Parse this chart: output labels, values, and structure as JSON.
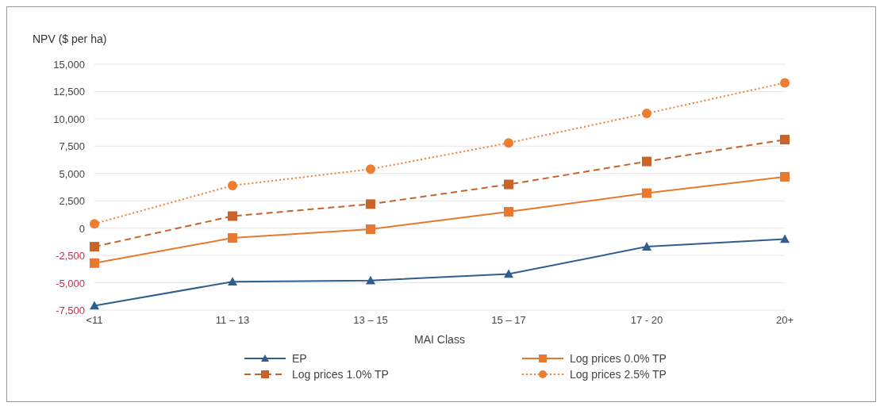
{
  "chart_data": {
    "type": "line",
    "ylabel": "NPV ($ per ha)",
    "xlabel": "MAI Class",
    "categories": [
      "<11",
      "11 – 13",
      "13 – 15",
      "15 – 17",
      "17 - 20",
      "20+"
    ],
    "series": [
      {
        "name": "EP",
        "color": "#2e5f8f",
        "marker": "triangle",
        "line_style": "solid",
        "values": [
          -7100,
          -4900,
          -4800,
          -4200,
          -1700,
          -1000
        ]
      },
      {
        "name": "Log prices 0.0% TP",
        "color": "#e8782f",
        "marker": "square",
        "line_style": "solid",
        "values": [
          -3200,
          -900,
          -100,
          1500,
          3200,
          4700
        ]
      },
      {
        "name": "Log prices 1.0% TP",
        "color": "#c8642a",
        "marker": "square",
        "line_style": "dashed",
        "values": [
          -1700,
          1100,
          2200,
          4000,
          6100,
          8100
        ]
      },
      {
        "name": "Log  prices 2.5% TP",
        "color": "#ed7d31",
        "marker": "circle",
        "line_style": "dotted",
        "values": [
          400,
          3900,
          5400,
          7800,
          10500,
          13300
        ]
      }
    ],
    "ylim": [
      -7500,
      15000
    ],
    "yticks": [
      {
        "value": -7500,
        "label": "-7,500"
      },
      {
        "value": -5000,
        "label": "-5,000"
      },
      {
        "value": -2500,
        "label": "-2,500"
      },
      0,
      {
        "value": 2500,
        "label": "2,500"
      },
      {
        "value": 5000,
        "label": "5,000"
      },
      {
        "value": 7500,
        "label": "7,500"
      },
      {
        "value": 10000,
        "label": "10,000"
      },
      {
        "value": 12500,
        "label": "12,500"
      },
      {
        "value": 15000,
        "label": "15,000"
      }
    ],
    "grid": "y",
    "legend": "bottom"
  }
}
